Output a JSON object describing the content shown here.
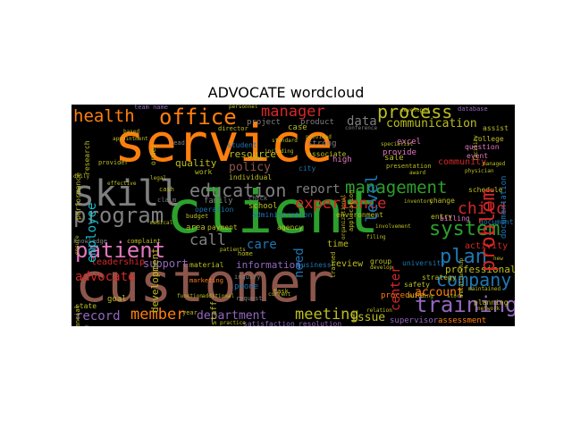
{
  "title": "ADVOCATE wordcloud",
  "words": {
    "service": "service",
    "client": "client",
    "customer": "customer",
    "skill": "skill",
    "management": "management",
    "process": "process",
    "education": "education",
    "program": "program",
    "patient": "patient",
    "office": "office",
    "health": "health",
    "system": "system",
    "training": "training",
    "company": "company",
    "experience": "experience",
    "plan": "plan",
    "child": "child",
    "member": "member",
    "meeting": "meeting",
    "manager": "manager",
    "communication": "communication",
    "problem": "problem",
    "advocate": "advocate",
    "record": "record",
    "department": "department",
    "call": "call",
    "care": "care",
    "report": "report",
    "policy": "policy",
    "level": "level",
    "account": "account",
    "issue": "issue",
    "employee": "employee",
    "need": "need",
    "center": "center",
    "data": "data",
    "professional": "professional",
    "information": "information",
    "support": "support",
    "leadership": "leadership",
    "quality": "quality",
    "resource": "resource",
    "review": "review",
    "community": "community",
    "activity": "activity",
    "time": "time",
    "sale": "sale",
    "provide": "provide",
    "excel": "excel",
    "high": "high",
    "strong": "strong",
    "product": "product",
    "project": "project",
    "case": "case",
    "school": "school",
    "area": "area",
    "family": "family",
    "staff": "staff",
    "phone": "phone",
    "supervisor": "supervisor",
    "assessment": "assessment",
    "procedure": "procedure",
    "resolution": "resolution",
    "satisfaction": "satisfaction",
    "material": "material",
    "business": "business",
    "group": "group",
    "goal": "goal",
    "state": "state",
    "development": "development",
    "administration": "administration",
    "environment": "environment",
    "entry": "entry",
    "change": "change",
    "billing": "billing",
    "documentation": "documentation",
    "document": "document",
    "college": "college",
    "assist": "assist",
    "question": "question",
    "event": "event",
    "schedule": "schedule",
    "planning": "planning",
    "safety": "safety",
    "university": "university",
    "strategy": "strategy",
    "agency": "agency",
    "payment": "payment",
    "operation": "operation",
    "work": "work",
    "individual": "individual",
    "student": "student",
    "city": "city",
    "associate": "associate",
    "presentation": "presentation",
    "performance": "performance",
    "research": "research",
    "team_name": "team name",
    "order": "order",
    "director": "director",
    "lead": "lead",
    "complaint": "complaint",
    "knowledge": "knowledge",
    "financial": "financial",
    "maintain": "maintain",
    "marketing": "marketing",
    "inquiry": "inquiry",
    "request": "request",
    "task": "task",
    "home": "home",
    "check": "check",
    "budget": "budget",
    "cash": "cash",
    "year": "year",
    "organizational": "organizational",
    "database": "database",
    "application": "application",
    "developed": "developed",
    "provided": "provided",
    "new": "new",
    "managed": "managed",
    "trained": "trained",
    "relation": "relation",
    "facility": "facility",
    "conference": "conference",
    "claim": "claim",
    "team": "team",
    "current": "current",
    "personnel": "personnel",
    "standard": "standard",
    "appointment": "appointment",
    "provider": "provider",
    "legal": "legal",
    "award": "award",
    "physician": "physician",
    "including": "including",
    "filing": "filing",
    "building": "building",
    "store": "store",
    "inventory": "inventory",
    "develop": "develop",
    "maintained": "maintained",
    "additional": "additional",
    "practice": "practice",
    "function": "function",
    "effective": "effective",
    "ensure": "ensure",
    "daily": "daily",
    "based": "based",
    "specialist": "specialist",
    "relationship": "relationship",
    "patients": "patients",
    "network": "network",
    "medical": "medical",
    "involvement": "involvement"
  },
  "colors": {
    "orange": "#ff7f0e",
    "green": "#2ca02c",
    "brown": "#8c564b",
    "gray": "#7f7f7f",
    "blue": "#1f77b4",
    "red": "#d62728",
    "purple": "#9467bd",
    "pink": "#e377c2",
    "olive": "#bcbd22",
    "cyan": "#17becf",
    "background": "#000000"
  }
}
